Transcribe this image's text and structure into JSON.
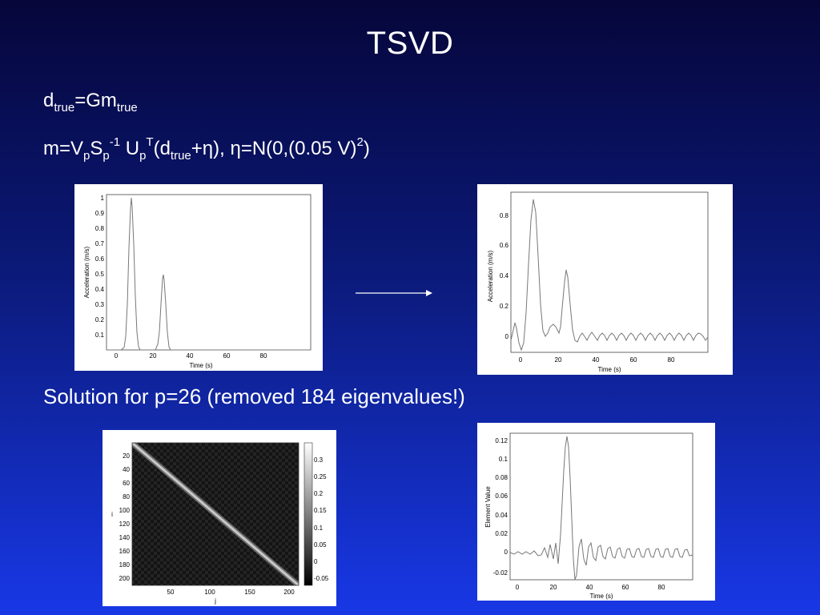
{
  "slide": {
    "title": "TSVD",
    "eq1": {
      "d": "d",
      "true1": "true",
      "mid": "=Gm",
      "true2": "true"
    },
    "eq2": {
      "p1": "m=V",
      "s1": "p",
      "p2": "S",
      "s2": "p",
      "sup1": "-1",
      "p3": " U",
      "s3": "p",
      "sup2": "T",
      "p4": "(d",
      "s4": "true",
      "p5": "+η),  η=N(0,(0.05 V)",
      "sup3": "2",
      "p6": ")"
    },
    "caption": "Solution for p=26 (removed 184 eigenvalues!)"
  },
  "panels": {
    "true_model": {
      "ylabel": "Acceleration (m/s)",
      "xlabel": "Time (s)",
      "yticks": [
        "0.1",
        "0.2",
        "0.3",
        "0.4",
        "0.5",
        "0.6",
        "0.7",
        "0.8",
        "0.9",
        "1"
      ],
      "xticks": [
        "0",
        "20",
        "40",
        "60",
        "80"
      ]
    },
    "recovered_model": {
      "ylabel": "Acceleration (m/s)",
      "xlabel": "Time (s)",
      "yticks": [
        "0",
        "0.2",
        "0.4",
        "0.6",
        "0.8"
      ],
      "xticks": [
        "0",
        "20",
        "40",
        "60",
        "80"
      ]
    },
    "resolution_matrix": {
      "ylabel": "i",
      "xlabel": "j",
      "yticks": [
        "20",
        "40",
        "60",
        "80",
        "100",
        "120",
        "140",
        "160",
        "180",
        "200"
      ],
      "xticks": [
        "50",
        "100",
        "150",
        "200"
      ],
      "colorbar_ticks": [
        "0.3",
        "0.25",
        "0.2",
        "0.15",
        "0.1",
        "0.05",
        "0",
        "-0.05"
      ]
    },
    "resolution_row": {
      "ylabel": "Element Value",
      "xlabel": "Time (s)",
      "yticks": [
        "0.12",
        "0.1",
        "0.08",
        "0.06",
        "0.04",
        "0.02",
        "0",
        "-0.02"
      ],
      "xticks": [
        "0",
        "20",
        "40",
        "60",
        "80"
      ]
    }
  },
  "colors": {
    "background_top": "#06063a",
    "background_bottom": "#1838e6",
    "text": "#ffffff"
  }
}
